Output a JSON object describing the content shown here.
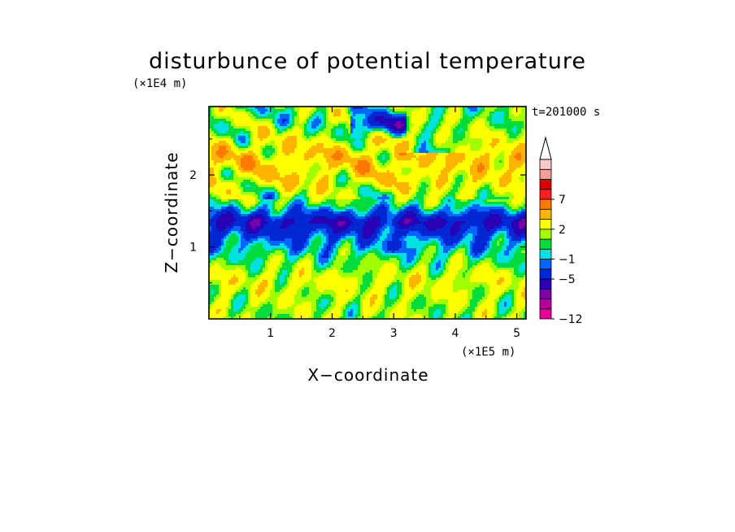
{
  "chart_data": {
    "type": "heatmap",
    "title": "disturbunce of potential temperature",
    "xlabel": "X−coordinate",
    "ylabel": "Z−coordinate",
    "x_unit": "(×1E5 m)",
    "y_unit": "(×1E4 m)",
    "time_label": "t=201000 s",
    "xlim": [
      0,
      5.15
    ],
    "ylim": [
      0,
      2.95
    ],
    "x_ticks": [
      {
        "value": 1,
        "label": "1"
      },
      {
        "value": 2,
        "label": "2"
      },
      {
        "value": 3,
        "label": "3"
      },
      {
        "value": 4,
        "label": "4"
      },
      {
        "value": 5,
        "label": "5"
      }
    ],
    "y_ticks": [
      {
        "value": 1,
        "label": "1"
      },
      {
        "value": 2,
        "label": "2"
      }
    ],
    "colorbar": {
      "levels": [
        -12,
        -9,
        -7,
        -5,
        -3,
        -1,
        0,
        1,
        2,
        3,
        5,
        7,
        9
      ],
      "colors": [
        "#e60099",
        "#b4009b",
        "#7a00a8",
        "#2a00b4",
        "#0028d2",
        "#0066ff",
        "#00e1e1",
        "#00dc3c",
        "#a0ff00",
        "#ffff00",
        "#ffb400",
        "#ff7800",
        "#ff1e1e",
        "#dc0000",
        "#ff9b9b",
        "#ffc8c8"
      ],
      "labels": [
        {
          "value": 7,
          "text": "7"
        },
        {
          "value": 2,
          "text": "2"
        },
        {
          "value": -1,
          "text": "−1"
        },
        {
          "value": -5,
          "text": "−5"
        },
        {
          "value": -12,
          "text": "−12"
        }
      ],
      "extend_top": true
    },
    "field_description_bands": [
      {
        "z": [
          0.0,
          0.35
        ],
        "value": 2.5
      },
      {
        "z": [
          0.35,
          0.75
        ],
        "value": 3.5
      },
      {
        "z": [
          0.75,
          0.95
        ],
        "value": 1.5
      },
      {
        "z": [
          0.95,
          1.25
        ],
        "value": -0.5
      },
      {
        "z": [
          1.25,
          1.45
        ],
        "value": -3.5
      },
      {
        "z": [
          1.45,
          1.75
        ],
        "value": 1.5
      },
      {
        "z": [
          1.75,
          2.05
        ],
        "value": 4.0
      },
      {
        "z": [
          2.05,
          2.45
        ],
        "value": 5.0
      },
      {
        "z": [
          2.45,
          2.95
        ],
        "value": 2.0
      }
    ],
    "grid": false
  }
}
